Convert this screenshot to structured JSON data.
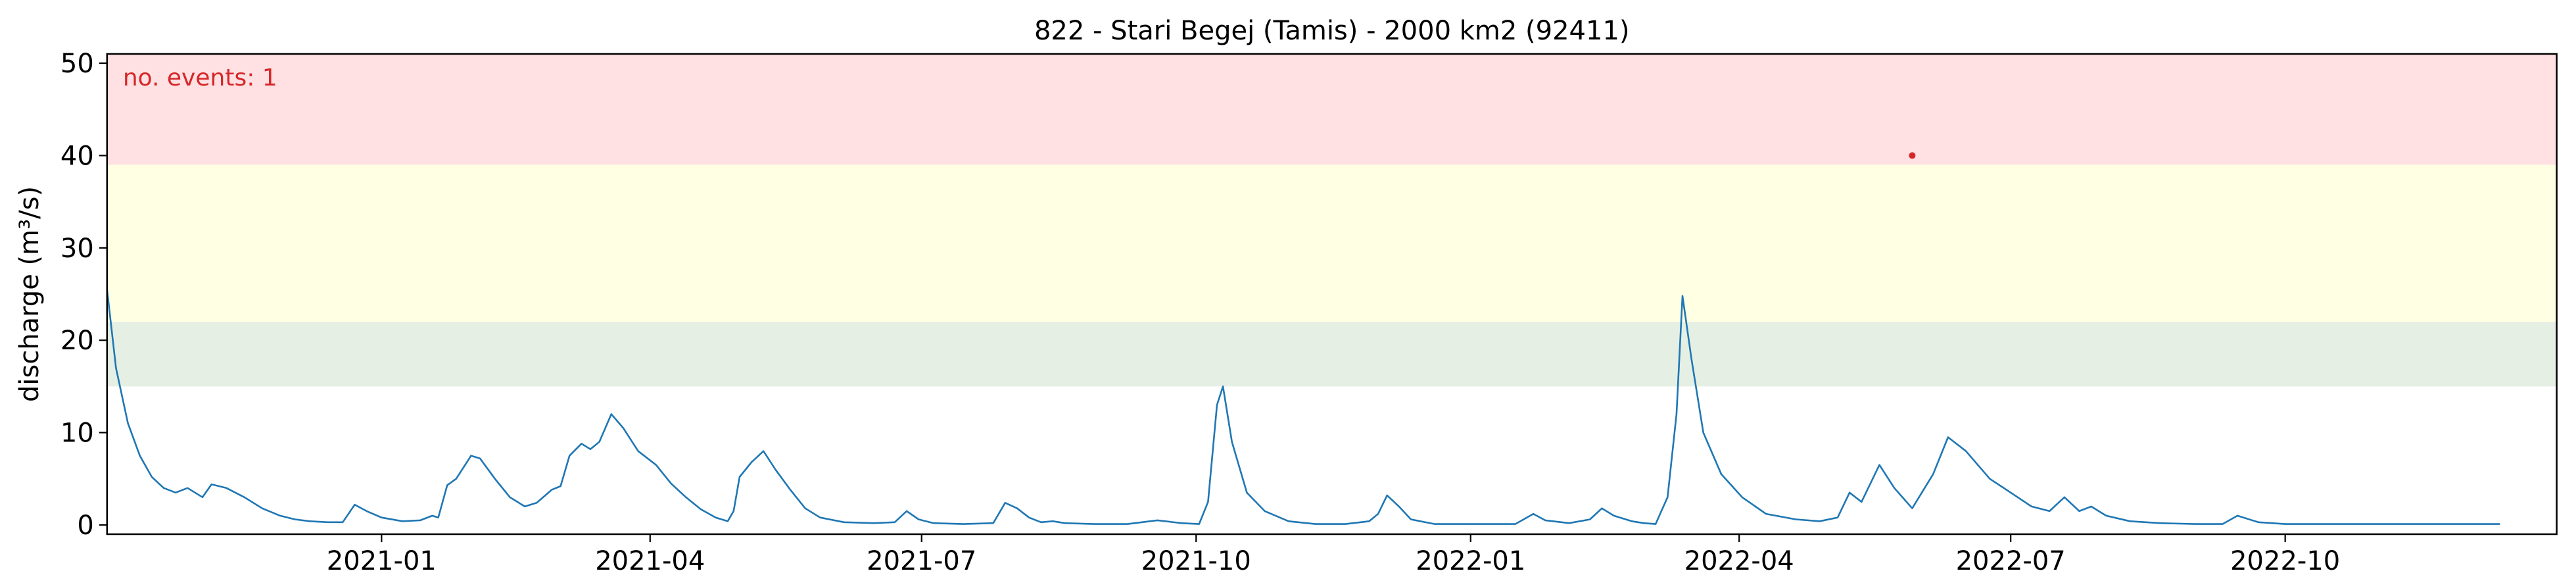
{
  "chart_data": {
    "type": "line",
    "title": "822 - Stari Begej (Tamis) - 2000 km2 (92411)",
    "xlabel": "",
    "ylabel": "discharge (m³/s)",
    "ylim": [
      -1,
      51
    ],
    "xlim": [
      "2020-10-01",
      "2022-12-31"
    ],
    "grid": false,
    "y_ticks": [
      0,
      10,
      20,
      30,
      40,
      50
    ],
    "x_ticks": [
      {
        "date": "2021-01-01",
        "label": "2021-01"
      },
      {
        "date": "2021-04-01",
        "label": "2021-04"
      },
      {
        "date": "2021-07-01",
        "label": "2021-07"
      },
      {
        "date": "2021-10-01",
        "label": "2021-10"
      },
      {
        "date": "2022-01-01",
        "label": "2022-01"
      },
      {
        "date": "2022-04-01",
        "label": "2022-04"
      },
      {
        "date": "2022-07-01",
        "label": "2022-07"
      },
      {
        "date": "2022-10-01",
        "label": "2022-10"
      }
    ],
    "bands": [
      {
        "from": 15,
        "to": 22,
        "color": "#e5efe3"
      },
      {
        "from": 22,
        "to": 39,
        "color": "#ffffe3"
      },
      {
        "from": 39,
        "to": 51,
        "color": "#ffe1e4"
      }
    ],
    "annotation": {
      "text": "no. events: 1",
      "color": "#d62728"
    },
    "events": [
      {
        "x": "2022-05-29",
        "y": 40.0,
        "color": "#d62728"
      }
    ],
    "series": [
      {
        "color": "#1f77b4",
        "points": [
          [
            "2020-10-01",
            25.5
          ],
          [
            "2020-10-04",
            17
          ],
          [
            "2020-10-08",
            11
          ],
          [
            "2020-10-12",
            7.5
          ],
          [
            "2020-10-16",
            5.2
          ],
          [
            "2020-10-20",
            4.0
          ],
          [
            "2020-10-24",
            3.5
          ],
          [
            "2020-10-28",
            4.0
          ],
          [
            "2020-11-02",
            3.0
          ],
          [
            "2020-11-05",
            4.4
          ],
          [
            "2020-11-10",
            4.0
          ],
          [
            "2020-11-16",
            3.0
          ],
          [
            "2020-11-22",
            1.8
          ],
          [
            "2020-11-28",
            1.0
          ],
          [
            "2020-12-03",
            0.6
          ],
          [
            "2020-12-08",
            0.4
          ],
          [
            "2020-12-14",
            0.3
          ],
          [
            "2020-12-19",
            0.3
          ],
          [
            "2020-12-23",
            2.2
          ],
          [
            "2020-12-27",
            1.5
          ],
          [
            "2021-01-01",
            0.8
          ],
          [
            "2021-01-08",
            0.4
          ],
          [
            "2021-01-14",
            0.5
          ],
          [
            "2021-01-18",
            1.0
          ],
          [
            "2021-01-20",
            0.8
          ],
          [
            "2021-01-23",
            4.3
          ],
          [
            "2021-01-26",
            5.0
          ],
          [
            "2021-01-31",
            7.5
          ],
          [
            "2021-02-03",
            7.2
          ],
          [
            "2021-02-08",
            5.0
          ],
          [
            "2021-02-13",
            3.0
          ],
          [
            "2021-02-18",
            2.0
          ],
          [
            "2021-02-22",
            2.4
          ],
          [
            "2021-02-27",
            3.8
          ],
          [
            "2021-03-02",
            4.2
          ],
          [
            "2021-03-05",
            7.5
          ],
          [
            "2021-03-09",
            8.8
          ],
          [
            "2021-03-12",
            8.2
          ],
          [
            "2021-03-15",
            9.0
          ],
          [
            "2021-03-19",
            12.0
          ],
          [
            "2021-03-23",
            10.5
          ],
          [
            "2021-03-28",
            8.0
          ],
          [
            "2021-04-03",
            6.5
          ],
          [
            "2021-04-08",
            4.5
          ],
          [
            "2021-04-13",
            3.0
          ],
          [
            "2021-04-18",
            1.7
          ],
          [
            "2021-04-23",
            0.8
          ],
          [
            "2021-04-27",
            0.4
          ],
          [
            "2021-04-29",
            1.5
          ],
          [
            "2021-05-01",
            5.2
          ],
          [
            "2021-05-05",
            6.8
          ],
          [
            "2021-05-09",
            8.0
          ],
          [
            "2021-05-13",
            6.0
          ],
          [
            "2021-05-18",
            3.8
          ],
          [
            "2021-05-23",
            1.8
          ],
          [
            "2021-05-28",
            0.8
          ],
          [
            "2021-06-05",
            0.3
          ],
          [
            "2021-06-15",
            0.2
          ],
          [
            "2021-06-22",
            0.3
          ],
          [
            "2021-06-26",
            1.5
          ],
          [
            "2021-06-30",
            0.6
          ],
          [
            "2021-07-05",
            0.2
          ],
          [
            "2021-07-15",
            0.1
          ],
          [
            "2021-07-25",
            0.2
          ],
          [
            "2021-07-29",
            2.4
          ],
          [
            "2021-08-02",
            1.8
          ],
          [
            "2021-08-06",
            0.8
          ],
          [
            "2021-08-10",
            0.3
          ],
          [
            "2021-08-14",
            0.4
          ],
          [
            "2021-08-18",
            0.2
          ],
          [
            "2021-08-28",
            0.1
          ],
          [
            "2021-09-08",
            0.1
          ],
          [
            "2021-09-18",
            0.5
          ],
          [
            "2021-09-26",
            0.2
          ],
          [
            "2021-10-02",
            0.1
          ],
          [
            "2021-10-05",
            2.5
          ],
          [
            "2021-10-08",
            13.0
          ],
          [
            "2021-10-10",
            15.0
          ],
          [
            "2021-10-13",
            9.0
          ],
          [
            "2021-10-18",
            3.5
          ],
          [
            "2021-10-24",
            1.5
          ],
          [
            "2021-11-01",
            0.4
          ],
          [
            "2021-11-10",
            0.1
          ],
          [
            "2021-11-20",
            0.1
          ],
          [
            "2021-11-28",
            0.4
          ],
          [
            "2021-12-01",
            1.2
          ],
          [
            "2021-12-04",
            3.2
          ],
          [
            "2021-12-08",
            2.0
          ],
          [
            "2021-12-12",
            0.6
          ],
          [
            "2021-12-20",
            0.1
          ],
          [
            "2021-12-30",
            0.1
          ],
          [
            "2022-01-08",
            0.1
          ],
          [
            "2022-01-16",
            0.1
          ],
          [
            "2022-01-22",
            1.2
          ],
          [
            "2022-01-26",
            0.5
          ],
          [
            "2022-02-03",
            0.2
          ],
          [
            "2022-02-10",
            0.6
          ],
          [
            "2022-02-14",
            1.8
          ],
          [
            "2022-02-18",
            1.0
          ],
          [
            "2022-02-24",
            0.4
          ],
          [
            "2022-02-28",
            0.2
          ],
          [
            "2022-03-04",
            0.1
          ],
          [
            "2022-03-08",
            3.0
          ],
          [
            "2022-03-11",
            12.0
          ],
          [
            "2022-03-13",
            24.8
          ],
          [
            "2022-03-16",
            18.0
          ],
          [
            "2022-03-20",
            10.0
          ],
          [
            "2022-03-26",
            5.5
          ],
          [
            "2022-04-02",
            3.0
          ],
          [
            "2022-04-10",
            1.2
          ],
          [
            "2022-04-20",
            0.6
          ],
          [
            "2022-04-28",
            0.4
          ],
          [
            "2022-05-04",
            0.8
          ],
          [
            "2022-05-08",
            3.5
          ],
          [
            "2022-05-12",
            2.5
          ],
          [
            "2022-05-18",
            6.5
          ],
          [
            "2022-05-23",
            4.0
          ],
          [
            "2022-05-29",
            1.8
          ],
          [
            "2022-06-05",
            5.5
          ],
          [
            "2022-06-10",
            9.5
          ],
          [
            "2022-06-16",
            8.0
          ],
          [
            "2022-06-24",
            5.0
          ],
          [
            "2022-07-01",
            3.5
          ],
          [
            "2022-07-08",
            2.0
          ],
          [
            "2022-07-14",
            1.5
          ],
          [
            "2022-07-19",
            3.0
          ],
          [
            "2022-07-24",
            1.5
          ],
          [
            "2022-07-28",
            2.0
          ],
          [
            "2022-08-02",
            1.0
          ],
          [
            "2022-08-10",
            0.4
          ],
          [
            "2022-08-20",
            0.2
          ],
          [
            "2022-09-01",
            0.1
          ],
          [
            "2022-09-10",
            0.1
          ],
          [
            "2022-09-15",
            1.0
          ],
          [
            "2022-09-22",
            0.3
          ],
          [
            "2022-10-01",
            0.1
          ],
          [
            "2022-10-20",
            0.1
          ],
          [
            "2022-11-05",
            0.1
          ],
          [
            "2022-11-15",
            0.1
          ],
          [
            "2022-11-28",
            0.1
          ],
          [
            "2022-12-05",
            0.1
          ],
          [
            "2022-12-12",
            0.1
          ]
        ]
      }
    ]
  }
}
